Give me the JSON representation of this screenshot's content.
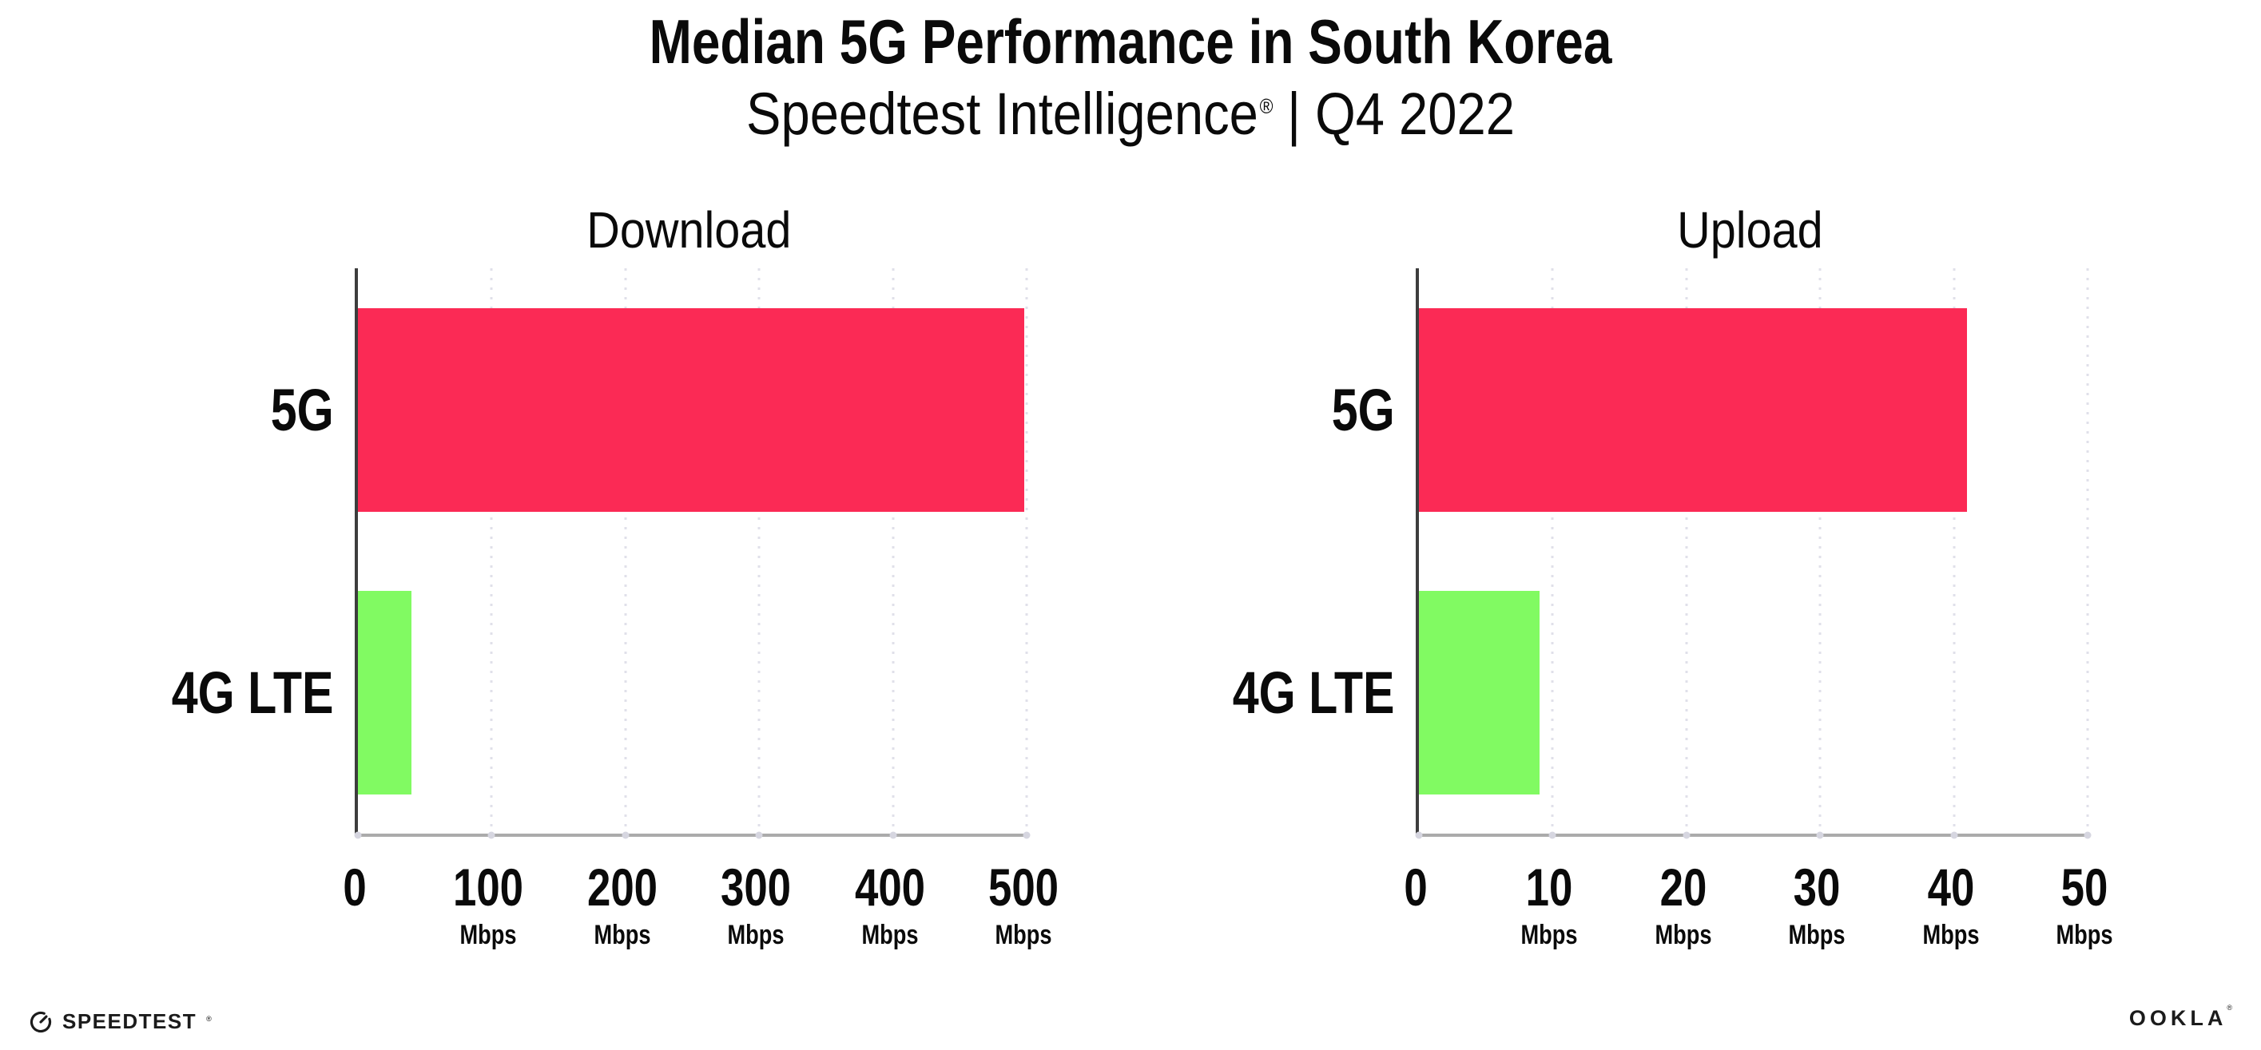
{
  "page": {
    "background": "#ffffff"
  },
  "header": {
    "title": "Median 5G Performance in South Korea",
    "subtitle_brand": "Speedtest Intelligence",
    "subtitle_reg": "®",
    "subtitle_period": "| Q4 2022"
  },
  "chart_data": [
    {
      "type": "bar",
      "orientation": "horizontal",
      "title": "Download",
      "categories": [
        "5G",
        "4G LTE"
      ],
      "values": [
        498,
        40
      ],
      "unit": "Mbps",
      "bar_colors": [
        "#fb2a55",
        "#81fa62"
      ],
      "xlim": [
        0,
        500
      ],
      "ticks": [
        0,
        100,
        200,
        300,
        400,
        500
      ],
      "tick_unit": "Mbps",
      "grid": "dotted-vertical-gridlines",
      "legend": "none"
    },
    {
      "type": "bar",
      "orientation": "horizontal",
      "title": "Upload",
      "categories": [
        "5G",
        "4G LTE"
      ],
      "values": [
        41,
        9
      ],
      "unit": "Mbps",
      "bar_colors": [
        "#fb2a55",
        "#81fa62"
      ],
      "xlim": [
        0,
        50
      ],
      "ticks": [
        0,
        10,
        20,
        30,
        40,
        50
      ],
      "tick_unit": "Mbps",
      "grid": "dotted-vertical-gridlines",
      "legend": "none"
    }
  ],
  "colors": {
    "bar_5g": "#fb2a55",
    "bar_4g": "#81fa62",
    "axis_left_spine": "#3d3d3d",
    "axis_bottom_spine": "#ababab",
    "gridline_dots": "#e0e0ea",
    "axis_tick_dots": "#d6d6e0",
    "text": "#0a0a0a"
  },
  "footer": {
    "speedtest_icon": "speedtest-gauge-icon",
    "speedtest_label": "SPEEDTEST",
    "speedtest_reg": "®",
    "ookla_label": "OOKLA",
    "ookla_reg": "®"
  }
}
